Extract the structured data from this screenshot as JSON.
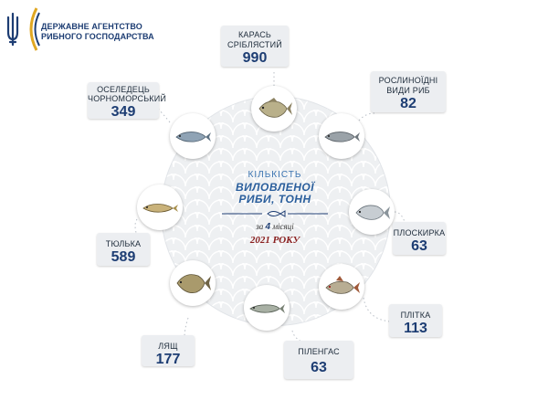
{
  "agency": {
    "line1": "ДЕРЖАВНЕ АГЕНТСТВО",
    "line2": "РИБНОГО ГОСПОДАРСТВА"
  },
  "center": {
    "top": "КІЛЬКІСТЬ",
    "main1": "ВИЛОВЛЕНОЇ",
    "main2": "РИБИ, ТОНН",
    "period_prefix": "за",
    "period_number": "4",
    "period_suffix": "місяці",
    "year": "2021 РОКУ"
  },
  "colors": {
    "accent": "#1d3d73",
    "gold": "#e0a722",
    "year": "#8a2020"
  },
  "species": [
    {
      "label1": "КАРАСЬ",
      "label2": "СРІБЛЯСТИЙ",
      "value": "990",
      "icon": "crucian-carp-icon"
    },
    {
      "label1": "РОСЛИНОЇДНІ",
      "label2": "ВИДИ РИБ",
      "value": "82",
      "icon": "silver-carp-icon"
    },
    {
      "label1": "ПЛОСКИРКА",
      "label2": "",
      "value": "63",
      "icon": "white-bream-icon"
    },
    {
      "label1": "ПЛІТКА",
      "label2": "",
      "value": "113",
      "icon": "roach-icon"
    },
    {
      "label1": "ПІЛЕНГАС",
      "label2": "",
      "value": "63",
      "icon": "mullet-icon"
    },
    {
      "label1": "ЛЯЩ",
      "label2": "",
      "value": "177",
      "icon": "bream-icon"
    },
    {
      "label1": "ТЮЛЬКА",
      "label2": "",
      "value": "589",
      "icon": "sprat-icon"
    },
    {
      "label1": "ОСЕЛЕДЕЦЬ",
      "label2": "ЧОРНОМОРСЬКИЙ",
      "value": "349",
      "icon": "herring-icon"
    }
  ]
}
